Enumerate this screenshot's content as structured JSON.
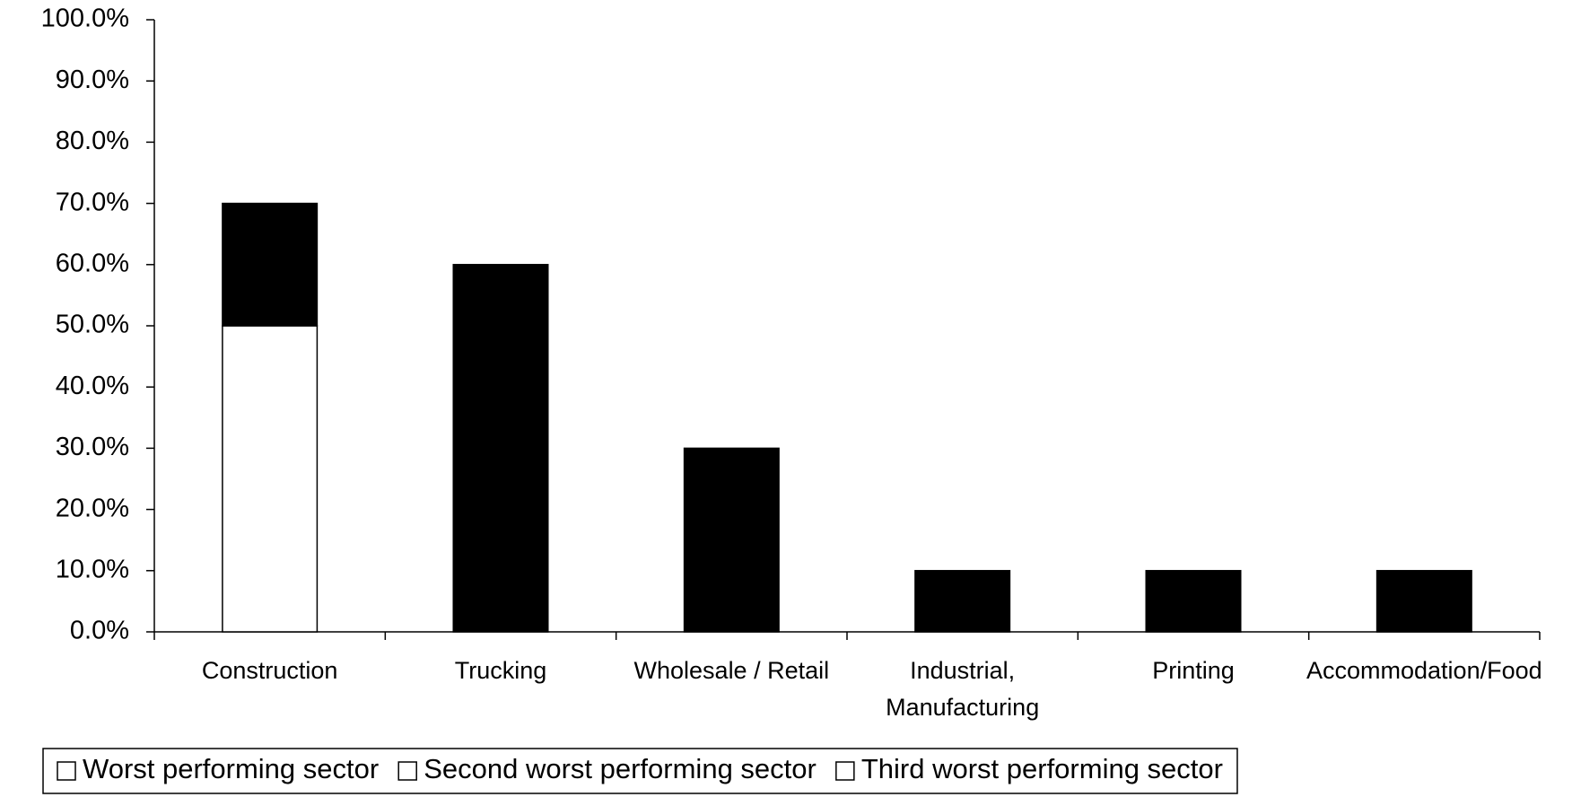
{
  "chart_data": {
    "type": "stacked_bar",
    "categories": [
      "Construction",
      "Trucking",
      "Wholesale / Retail",
      "Industrial,\nManufacturing",
      "Printing",
      "Accommodation/Food"
    ],
    "series": [
      {
        "name": "Worst performing sector",
        "color": "#ffffff",
        "values": [
          50,
          null,
          null,
          null,
          null,
          null
        ]
      },
      {
        "name": "Second worst performing sector",
        "color": "#000000",
        "values": [
          20,
          60,
          30,
          10,
          10,
          10
        ]
      },
      {
        "name": "Third worst performing sector",
        "color": "#000000",
        "values": [
          null,
          null,
          null,
          null,
          null,
          null
        ]
      }
    ],
    "ylim": [
      0,
      100
    ],
    "yticks": [
      {
        "value": 0,
        "label": "0.0%"
      },
      {
        "value": 10,
        "label": "10.0%"
      },
      {
        "value": 20,
        "label": "20.0%"
      },
      {
        "value": 30,
        "label": "30.0%"
      },
      {
        "value": 40,
        "label": "40.0%"
      },
      {
        "value": 50,
        "label": "50.0%"
      },
      {
        "value": 60,
        "label": "60.0%"
      },
      {
        "value": 70,
        "label": "70.0%"
      },
      {
        "value": 80,
        "label": "80.0%"
      },
      {
        "value": 90,
        "label": "90.0%"
      },
      {
        "value": 100,
        "label": "100.0%"
      }
    ],
    "grid": false,
    "legend": "bottom"
  }
}
